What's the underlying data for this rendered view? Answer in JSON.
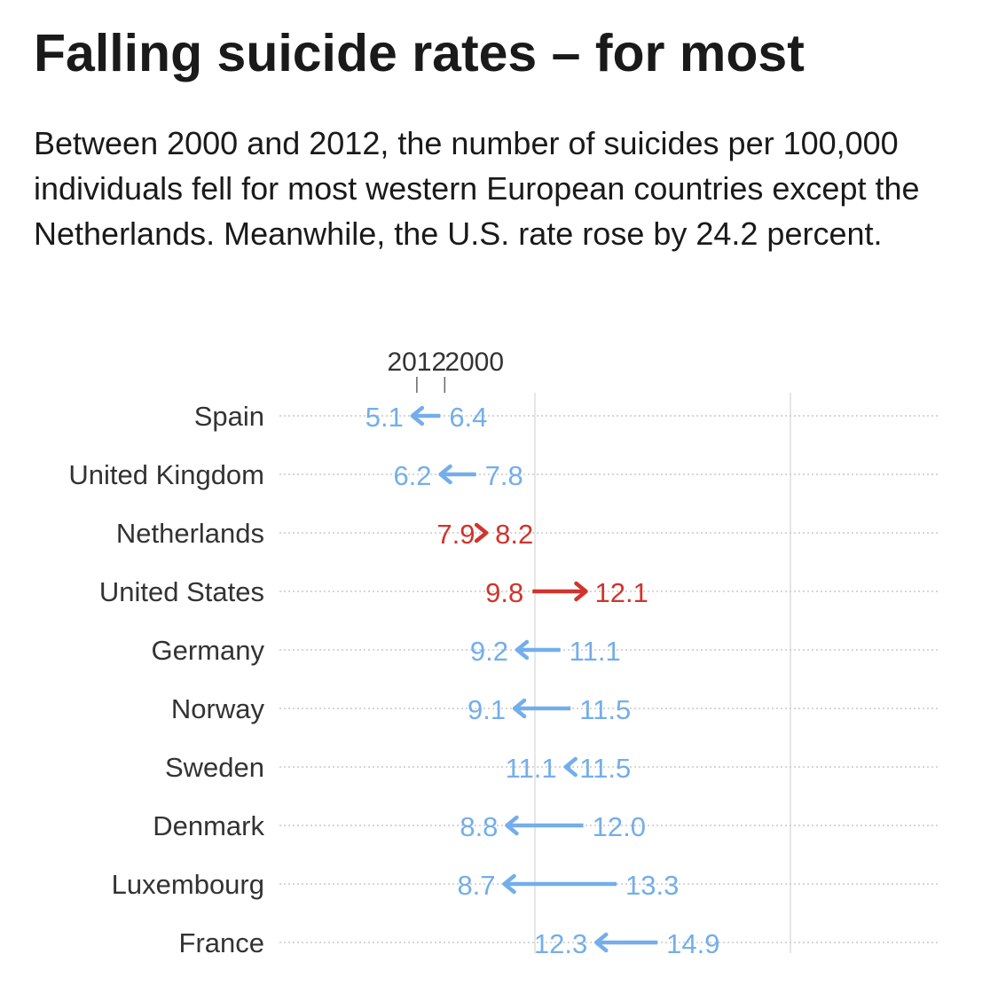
{
  "title": "Falling suicide rates – for most",
  "subtitle": "Between 2000 and 2012, the number of suicides per 100,000 individuals fell for most western European countries except the Netherlands. Meanwhile, the U.S. rate rose by 24.2 percent.",
  "colors": {
    "decrease": "#74aeea",
    "increase": "#d0342c",
    "text": "#1a1a1a",
    "gridline": "#e6e6e6"
  },
  "chart_data": {
    "type": "arrow",
    "legend": {
      "start_label": "2000",
      "end_label": "2012"
    },
    "series_keys": [
      "2000",
      "2012"
    ],
    "categories": [
      "Spain",
      "United Kingdom",
      "Netherlands",
      "United States",
      "Germany",
      "Norway",
      "Sweden",
      "Denmark",
      "Luxembourg",
      "France"
    ],
    "rows": [
      {
        "country": "Spain",
        "y2000": 6.4,
        "y2012": 5.1,
        "v2000": "6.4",
        "v2012": "5.1",
        "trend": "down"
      },
      {
        "country": "United Kingdom",
        "y2000": 7.8,
        "y2012": 6.2,
        "v2000": "7.8",
        "v2012": "6.2",
        "trend": "down"
      },
      {
        "country": "Netherlands",
        "y2000": 7.9,
        "y2012": 8.2,
        "v2000": "7.9",
        "v2012": "8.2",
        "trend": "up"
      },
      {
        "country": "United States",
        "y2000": 9.8,
        "y2012": 12.1,
        "v2000": "9.8",
        "v2012": "12.1",
        "trend": "up"
      },
      {
        "country": "Germany",
        "y2000": 11.1,
        "y2012": 9.2,
        "v2000": "11.1",
        "v2012": "9.2",
        "trend": "down"
      },
      {
        "country": "Norway",
        "y2000": 11.5,
        "y2012": 9.1,
        "v2000": "11.5",
        "v2012": "9.1",
        "trend": "down"
      },
      {
        "country": "Sweden",
        "y2000": 11.5,
        "y2012": 11.1,
        "v2000": "11.5",
        "v2012": "11.1",
        "trend": "down"
      },
      {
        "country": "Denmark",
        "y2000": 12.0,
        "y2012": 8.8,
        "v2000": "12.0",
        "v2012": "8.8",
        "trend": "down"
      },
      {
        "country": "Luxembourg",
        "y2000": 13.3,
        "y2012": 8.7,
        "v2000": "13.3",
        "v2012": "8.7",
        "trend": "down"
      },
      {
        "country": "France",
        "y2000": 14.9,
        "y2012": 12.3,
        "v2000": "14.9",
        "v2012": "12.3",
        "trend": "down"
      }
    ],
    "x_gridlines": [
      10,
      20
    ],
    "xlim": [
      0,
      25
    ],
    "grid": true
  }
}
